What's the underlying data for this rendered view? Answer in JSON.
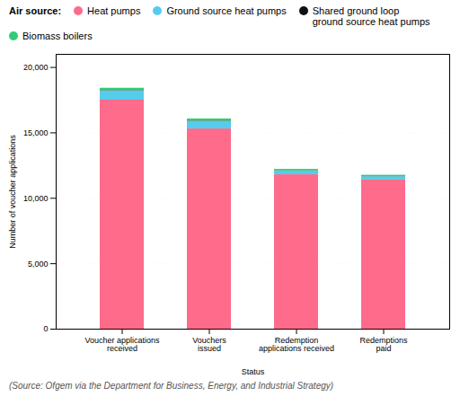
{
  "chart_data": {
    "type": "bar",
    "stacked": true,
    "categories": [
      "Voucher applications\nreceived",
      "Vouchers\nissued",
      "Redemption\napplications received",
      "Redemptions\npaid"
    ],
    "series": [
      {
        "name": "Heat pumps",
        "color": "#FF6B8A",
        "values": [
          17500,
          15300,
          11800,
          11400
        ]
      },
      {
        "name": "Ground source heat pumps",
        "color": "#55CCEE",
        "values": [
          700,
          580,
          280,
          240
        ]
      },
      {
        "name": "Shared ground loop\nground source heat pumps",
        "color": "#111111",
        "values": [
          30,
          25,
          10,
          10
        ]
      },
      {
        "name": "Biomass boilers",
        "color": "#33CC77",
        "values": [
          180,
          160,
          120,
          110
        ]
      }
    ],
    "xlabel": "Status",
    "ylabel": "Number of voucher applications",
    "ylim": [
      0,
      21000
    ],
    "yticks": [
      0,
      {
        "value": 5000,
        "label": "5,000"
      },
      {
        "value": 10000,
        "label": "10,000"
      },
      {
        "value": 15000,
        "label": "15,000"
      },
      {
        "value": 20000,
        "label": "20,000"
      }
    ],
    "grid": true,
    "legend": "top",
    "legend_title": "Air source:",
    "caption": "(Source: Ofgem via the Department for Business, Energy, and Industrial Strategy)"
  }
}
